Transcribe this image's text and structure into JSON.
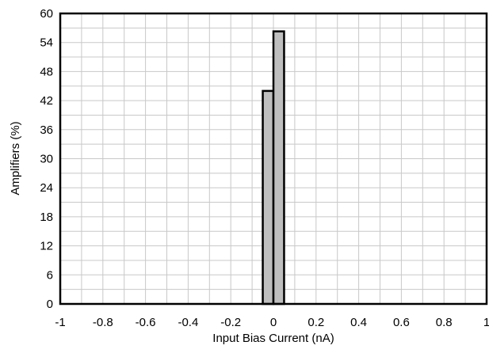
{
  "chart_data": {
    "type": "bar",
    "title": "",
    "xlabel": "Input Bias Current (nA)",
    "ylabel": "Amplifiers (%)",
    "xlim": [
      -1,
      1
    ],
    "ylim": [
      0,
      60
    ],
    "x_ticks": [
      "-1",
      "-0.8",
      "-0.6",
      "-0.4",
      "-0.2",
      "0",
      "0.2",
      "0.4",
      "0.6",
      "0.8",
      "1"
    ],
    "y_ticks": [
      "0",
      "6",
      "12",
      "18",
      "24",
      "30",
      "36",
      "42",
      "48",
      "54",
      "60"
    ],
    "x_tick_values": [
      -1,
      -0.8,
      -0.6,
      -0.4,
      -0.2,
      0,
      0.2,
      0.4,
      0.6,
      0.8,
      1
    ],
    "y_tick_values": [
      0,
      6,
      12,
      18,
      24,
      30,
      36,
      42,
      48,
      54,
      60
    ],
    "x_minor_step": 0.1,
    "y_minor_step": 3,
    "grid": true,
    "bins": [
      {
        "x_start": -0.05,
        "x_end": 0.0,
        "value": 44
      },
      {
        "x_start": 0.0,
        "x_end": 0.05,
        "value": 56.3
      }
    ],
    "colors": {
      "bar_fill": "#bfbfbf",
      "bar_stroke": "#000000",
      "grid": "#c8c8c8",
      "frame": "#000000"
    }
  }
}
